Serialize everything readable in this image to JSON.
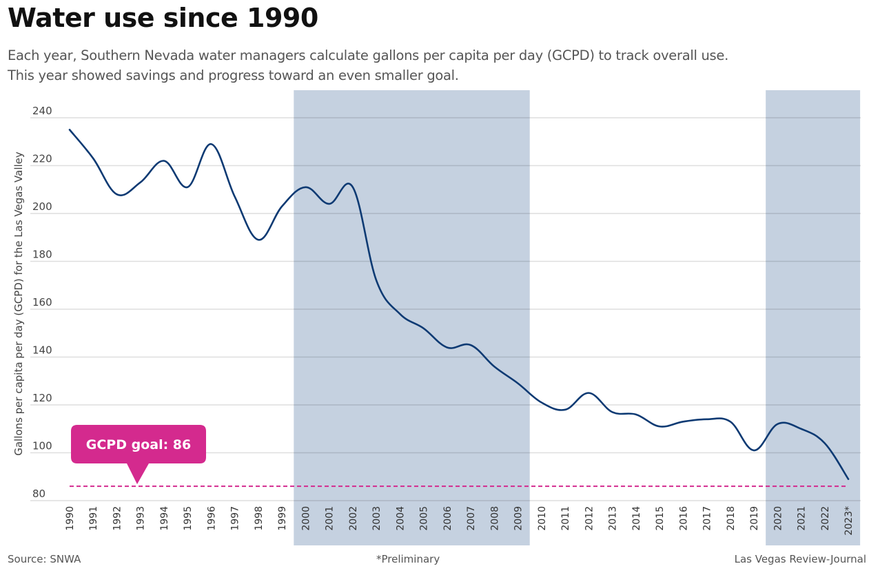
{
  "header": {
    "title": "Water use since 1990",
    "subtitle_lines": [
      "Each year, Southern Nevada water managers calculate gallons per capita per day (GCPD) to track overall use.",
      "This year showed savings and progress toward an even smaller goal."
    ]
  },
  "footer": {
    "source": "Source: SNWA",
    "note": "*Preliminary",
    "credit": "Las Vegas Review-Journal"
  },
  "colors": {
    "line": "#0d3a73",
    "shade": "#c5d1e0",
    "goal": "#d42a8e",
    "grid": "#dddddd"
  },
  "chart_data": {
    "type": "line",
    "title": "Water use since 1990",
    "xlabel": "",
    "ylabel": "Gallons per capita per day (GCPD) for the Las Vegas Valley",
    "ylim": [
      80,
      240
    ],
    "yticks": [
      80,
      100,
      120,
      140,
      160,
      180,
      200,
      220,
      240
    ],
    "grid": true,
    "x": [
      "1990",
      "1991",
      "1992",
      "1993",
      "1994",
      "1995",
      "1996",
      "1997",
      "1998",
      "1999",
      "2000",
      "2001",
      "2002",
      "2003",
      "2004",
      "2005",
      "2006",
      "2007",
      "2008",
      "2009",
      "2010",
      "2011",
      "2012",
      "2013",
      "2014",
      "2015",
      "2016",
      "2017",
      "2018",
      "2019",
      "2020",
      "2021",
      "2022",
      "2023*"
    ],
    "series": [
      {
        "name": "GCPD",
        "values": [
          235,
          223,
          208,
          213,
          222,
          211,
          229,
          207,
          189,
          203,
          211,
          204,
          211,
          172,
          158,
          152,
          144,
          145,
          136,
          129,
          121,
          118,
          125,
          117,
          116,
          111,
          113,
          114,
          113,
          101,
          112,
          110,
          104,
          89
        ]
      }
    ],
    "shaded_ranges": [
      {
        "from": "2000",
        "to": "2009"
      },
      {
        "from": "2020",
        "to": "2023*"
      }
    ],
    "reference_line": {
      "value": 86,
      "label": "GCPD goal: 86",
      "style": "dashed"
    },
    "annotations": [
      "*Preliminary"
    ]
  }
}
